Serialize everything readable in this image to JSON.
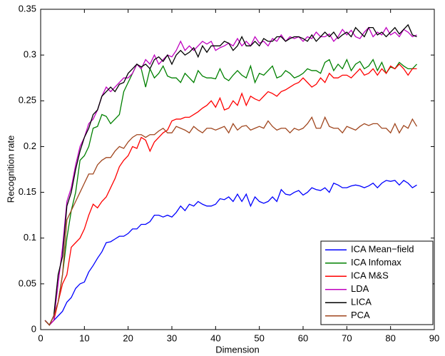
{
  "chart_data": {
    "type": "line",
    "xlabel": "Dimension",
    "ylabel": "Recognition rate",
    "x": [
      1,
      2,
      3,
      4,
      5,
      6,
      7,
      8,
      9,
      10,
      11,
      12,
      13,
      14,
      15,
      16,
      17,
      18,
      19,
      20,
      21,
      22,
      23,
      24,
      25,
      26,
      27,
      28,
      29,
      30,
      31,
      32,
      33,
      34,
      35,
      36,
      37,
      38,
      39,
      40,
      41,
      42,
      43,
      44,
      45,
      46,
      47,
      48,
      49,
      50,
      51,
      52,
      53,
      54,
      55,
      56,
      57,
      58,
      59,
      60,
      61,
      62,
      63,
      64,
      65,
      66,
      67,
      68,
      69,
      70,
      71,
      72,
      73,
      74,
      75,
      76,
      77,
      78,
      79,
      80,
      81,
      82,
      83,
      84,
      85,
      86
    ],
    "xlim": [
      0,
      90
    ],
    "xticks": [
      0,
      10,
      20,
      30,
      40,
      50,
      60,
      70,
      80,
      90
    ],
    "ylim": [
      0,
      0.35
    ],
    "yticks": [
      0,
      0.05,
      0.1,
      0.15,
      0.2,
      0.25,
      0.3,
      0.35
    ],
    "grid": false,
    "legend": "lower right",
    "series": [
      {
        "name": "ICA Mean−field",
        "color": "#0000ff",
        "values": [
          0.01,
          0.005,
          0.01,
          0.015,
          0.02,
          0.03,
          0.035,
          0.045,
          0.05,
          0.052,
          0.063,
          0.07,
          0.078,
          0.085,
          0.095,
          0.096,
          0.099,
          0.102,
          0.102,
          0.105,
          0.11,
          0.11,
          0.115,
          0.115,
          0.118,
          0.125,
          0.125,
          0.123,
          0.125,
          0.123,
          0.128,
          0.135,
          0.13,
          0.137,
          0.135,
          0.14,
          0.137,
          0.135,
          0.135,
          0.137,
          0.143,
          0.142,
          0.145,
          0.14,
          0.148,
          0.14,
          0.148,
          0.135,
          0.145,
          0.14,
          0.138,
          0.14,
          0.145,
          0.14,
          0.153,
          0.148,
          0.147,
          0.15,
          0.152,
          0.147,
          0.15,
          0.155,
          0.153,
          0.152,
          0.155,
          0.15,
          0.16,
          0.158,
          0.155,
          0.155,
          0.157,
          0.158,
          0.157,
          0.155,
          0.157,
          0.16,
          0.155,
          0.16,
          0.163,
          0.162,
          0.163,
          0.158,
          0.163,
          0.16,
          0.155,
          0.158
        ]
      },
      {
        "name": "ICA Infomax",
        "color": "#008000",
        "values": [
          0.01,
          0.005,
          0.015,
          0.03,
          0.06,
          0.1,
          0.13,
          0.15,
          0.185,
          0.19,
          0.2,
          0.22,
          0.222,
          0.235,
          0.233,
          0.225,
          0.23,
          0.235,
          0.26,
          0.27,
          0.28,
          0.29,
          0.285,
          0.265,
          0.285,
          0.275,
          0.28,
          0.288,
          0.277,
          0.275,
          0.275,
          0.27,
          0.28,
          0.275,
          0.27,
          0.283,
          0.277,
          0.275,
          0.275,
          0.274,
          0.285,
          0.275,
          0.272,
          0.278,
          0.283,
          0.278,
          0.275,
          0.288,
          0.27,
          0.28,
          0.278,
          0.283,
          0.288,
          0.275,
          0.277,
          0.283,
          0.28,
          0.275,
          0.277,
          0.28,
          0.285,
          0.283,
          0.283,
          0.28,
          0.292,
          0.295,
          0.283,
          0.29,
          0.285,
          0.295,
          0.283,
          0.29,
          0.293,
          0.285,
          0.288,
          0.295,
          0.283,
          0.292,
          0.28,
          0.287,
          0.285,
          0.292,
          0.288,
          0.285,
          0.285,
          0.29
        ]
      },
      {
        "name": "ICA M&S",
        "color": "#ff0000",
        "values": [
          0.01,
          0.005,
          0.01,
          0.03,
          0.05,
          0.06,
          0.09,
          0.095,
          0.1,
          0.11,
          0.125,
          0.137,
          0.133,
          0.14,
          0.145,
          0.155,
          0.165,
          0.178,
          0.185,
          0.19,
          0.2,
          0.198,
          0.21,
          0.207,
          0.195,
          0.205,
          0.21,
          0.215,
          0.218,
          0.228,
          0.23,
          0.23,
          0.232,
          0.232,
          0.235,
          0.238,
          0.242,
          0.245,
          0.25,
          0.243,
          0.253,
          0.24,
          0.242,
          0.25,
          0.245,
          0.258,
          0.245,
          0.255,
          0.252,
          0.25,
          0.255,
          0.26,
          0.258,
          0.255,
          0.26,
          0.262,
          0.265,
          0.268,
          0.27,
          0.275,
          0.27,
          0.265,
          0.268,
          0.275,
          0.27,
          0.28,
          0.275,
          0.275,
          0.278,
          0.278,
          0.275,
          0.28,
          0.285,
          0.278,
          0.28,
          0.285,
          0.278,
          0.285,
          0.28,
          0.288,
          0.285,
          0.29,
          0.285,
          0.278,
          0.285,
          0.285
        ]
      },
      {
        "name": "LDA",
        "color": "#bf00bf",
        "values": [
          0.01,
          0.005,
          0.01,
          0.05,
          0.09,
          0.14,
          0.155,
          0.18,
          0.2,
          0.21,
          0.225,
          0.23,
          0.24,
          0.255,
          0.265,
          0.26,
          0.265,
          0.27,
          0.275,
          0.275,
          0.28,
          0.29,
          0.285,
          0.295,
          0.29,
          0.3,
          0.29,
          0.295,
          0.3,
          0.298,
          0.305,
          0.315,
          0.305,
          0.31,
          0.305,
          0.31,
          0.315,
          0.312,
          0.315,
          0.305,
          0.308,
          0.31,
          0.313,
          0.31,
          0.318,
          0.31,
          0.315,
          0.31,
          0.32,
          0.313,
          0.315,
          0.31,
          0.318,
          0.315,
          0.322,
          0.315,
          0.32,
          0.318,
          0.32,
          0.315,
          0.32,
          0.318,
          0.325,
          0.32,
          0.32,
          0.323,
          0.315,
          0.32,
          0.328,
          0.322,
          0.327,
          0.32,
          0.318,
          0.325,
          0.33,
          0.32,
          0.325,
          0.322,
          0.33,
          0.322,
          0.325,
          0.32,
          0.328,
          0.325,
          0.32,
          0.322
        ]
      },
      {
        "name": "LICA",
        "color": "#000000",
        "values": [
          0.01,
          0.005,
          0.015,
          0.06,
          0.08,
          0.135,
          0.15,
          0.175,
          0.195,
          0.21,
          0.22,
          0.235,
          0.24,
          0.255,
          0.26,
          0.265,
          0.26,
          0.268,
          0.27,
          0.28,
          0.285,
          0.29,
          0.287,
          0.29,
          0.285,
          0.295,
          0.298,
          0.293,
          0.3,
          0.29,
          0.3,
          0.305,
          0.3,
          0.303,
          0.308,
          0.298,
          0.31,
          0.303,
          0.31,
          0.31,
          0.31,
          0.315,
          0.313,
          0.305,
          0.31,
          0.32,
          0.31,
          0.31,
          0.315,
          0.31,
          0.318,
          0.315,
          0.315,
          0.32,
          0.32,
          0.315,
          0.318,
          0.32,
          0.32,
          0.318,
          0.315,
          0.322,
          0.315,
          0.32,
          0.325,
          0.32,
          0.325,
          0.318,
          0.322,
          0.325,
          0.32,
          0.33,
          0.325,
          0.32,
          0.33,
          0.33,
          0.322,
          0.325,
          0.32,
          0.325,
          0.33,
          0.323,
          0.328,
          0.333,
          0.322,
          0.32
        ]
      },
      {
        "name": "PCA",
        "color": "#a0461e",
        "values": [
          0.01,
          0.005,
          0.015,
          0.03,
          0.06,
          0.12,
          0.13,
          0.14,
          0.15,
          0.16,
          0.17,
          0.17,
          0.18,
          0.185,
          0.188,
          0.188,
          0.195,
          0.2,
          0.198,
          0.205,
          0.21,
          0.213,
          0.213,
          0.21,
          0.213,
          0.213,
          0.217,
          0.22,
          0.215,
          0.215,
          0.222,
          0.22,
          0.218,
          0.215,
          0.222,
          0.218,
          0.215,
          0.22,
          0.22,
          0.218,
          0.22,
          0.222,
          0.215,
          0.225,
          0.218,
          0.222,
          0.223,
          0.218,
          0.22,
          0.222,
          0.22,
          0.228,
          0.222,
          0.218,
          0.22,
          0.22,
          0.215,
          0.22,
          0.218,
          0.22,
          0.225,
          0.232,
          0.22,
          0.22,
          0.232,
          0.222,
          0.22,
          0.22,
          0.215,
          0.222,
          0.22,
          0.218,
          0.222,
          0.225,
          0.223,
          0.225,
          0.225,
          0.22,
          0.22,
          0.215,
          0.225,
          0.215,
          0.223,
          0.22,
          0.23,
          0.222
        ]
      }
    ]
  }
}
